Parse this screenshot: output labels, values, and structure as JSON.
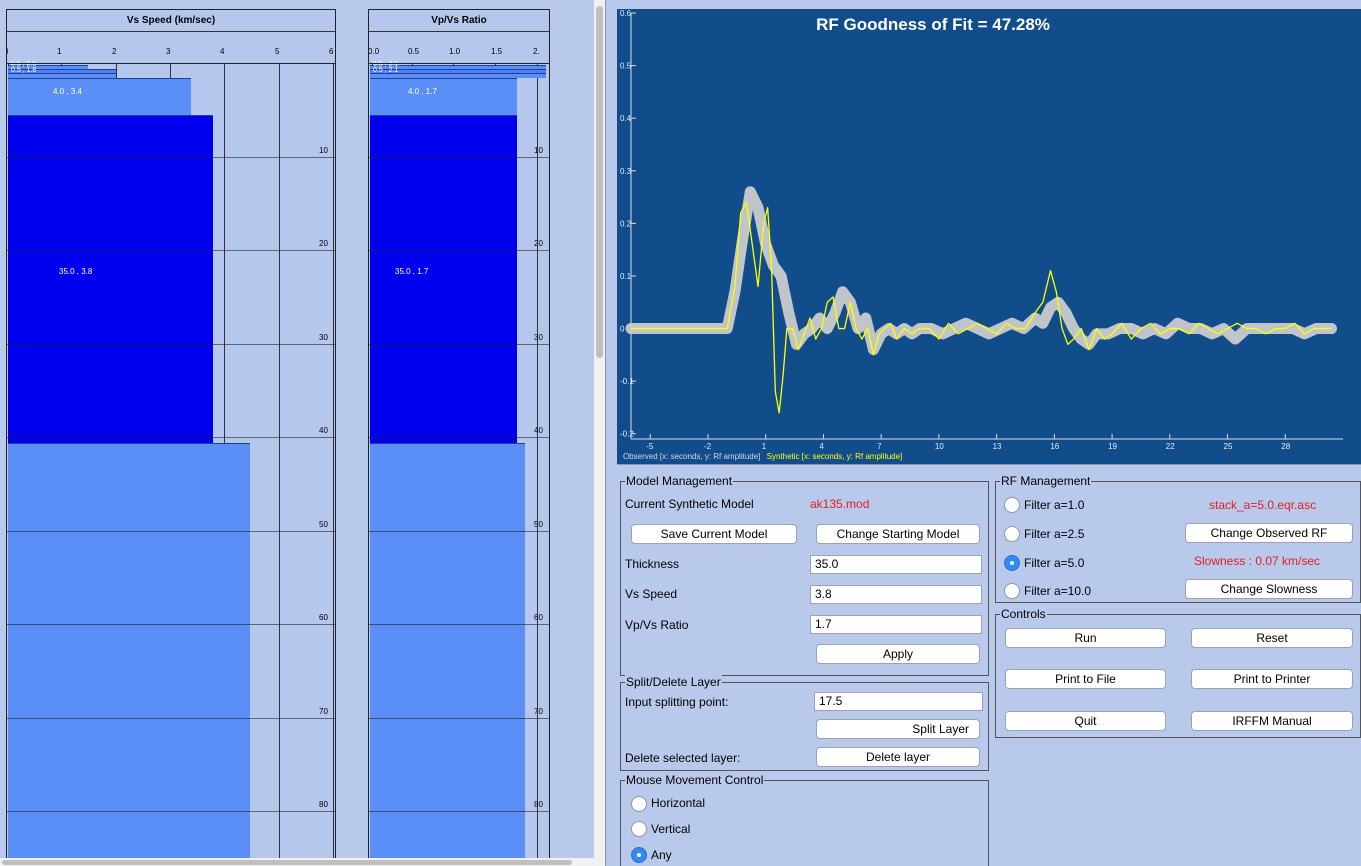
{
  "vs_panel": {
    "title": "Vs Speed (km/sec)",
    "x_ticks": [
      "0",
      "1",
      "2",
      "3",
      "4",
      "5",
      "6"
    ],
    "layer_labels": [
      "4.0 , 3.4",
      "35.0 , 3.8"
    ],
    "small_labels": [
      "0.5 , 2.0",
      "0.5 , 1.8"
    ]
  },
  "vpvs_panel": {
    "title": "Vp/Vs Ratio",
    "x_ticks": [
      "0.0",
      "0.5",
      "1.0",
      "1.5",
      "2."
    ],
    "layer_labels": [
      "4.0 , 1.7",
      "35.0 , 1.7"
    ],
    "small_labels": [
      "0.5 , 2.1",
      "0.5 , 2.1"
    ]
  },
  "depth_ticks": [
    "10",
    "20",
    "30",
    "40",
    "50",
    "60",
    "70",
    "80"
  ],
  "colors": {
    "dark_layer": "#0000ee",
    "light_layer": "#5b8ff8",
    "mid_layer": "#4f82f0",
    "plot_bg": "#124d8b",
    "synthetic": "#ffff00",
    "observed": "#cfcfcf",
    "accent_red": "#e0211f"
  },
  "plot": {
    "title": "RF Goodness of Fit = 47.28%",
    "legend_observed": "Observed [x: seconds, y: Rf amplitude]",
    "legend_synthetic": "Synthetic [x: seconds, y: Rf amplitude]"
  },
  "chart_data": {
    "type": "line",
    "title": "RF Goodness of Fit = 47.28%",
    "xlim": [
      -6,
      31
    ],
    "ylim": [
      -0.21,
      0.6
    ],
    "x_ticks": [
      "-5",
      "-2",
      "1",
      "4",
      "7",
      "10",
      "13",
      "16",
      "19",
      "22",
      "25",
      "28"
    ],
    "y_ticks": [
      "0.6",
      "0.5",
      "0.4",
      "0.3",
      "0.2",
      "0.1",
      "0",
      "-0.1",
      "-0.2"
    ],
    "series": [
      {
        "name": "Observed [x: seconds, y: Rf amplitude]",
        "x": [
          -6,
          -1,
          -0.6,
          -0.2,
          0.2,
          0.6,
          1.0,
          1.4,
          1.8,
          2.2,
          2.6,
          3.0,
          3.4,
          3.8,
          4.2,
          4.6,
          5.0,
          5.4,
          5.8,
          6.2,
          6.6,
          7.0,
          7.4,
          7.8,
          8.2,
          8.6,
          9.0,
          9.6,
          10.2,
          10.8,
          11.4,
          12.0,
          12.6,
          13.2,
          13.8,
          14.4,
          15.0,
          15.4,
          15.8,
          16.2,
          16.6,
          17.0,
          17.4,
          17.8,
          18.2,
          18.8,
          19.4,
          20.0,
          20.6,
          21.2,
          21.8,
          22.4,
          23.0,
          23.6,
          24.2,
          24.8,
          25.4,
          26.0,
          26.6,
          27.2,
          27.8,
          28.4,
          29.0,
          29.6,
          30.4
        ],
        "values": [
          0.0,
          0.0,
          0.07,
          0.17,
          0.26,
          0.23,
          0.16,
          0.12,
          0.1,
          0.03,
          -0.03,
          -0.01,
          0.0,
          0.02,
          0.0,
          0.03,
          0.07,
          0.05,
          0.0,
          0.02,
          -0.04,
          -0.01,
          0.0,
          -0.01,
          0.0,
          -0.01,
          0.0,
          0.0,
          -0.01,
          0.0,
          0.01,
          0.0,
          -0.01,
          0.0,
          0.01,
          0.0,
          0.02,
          0.01,
          0.04,
          0.05,
          0.03,
          0.0,
          -0.02,
          -0.03,
          -0.01,
          -0.01,
          0.0,
          0.0,
          -0.01,
          0.0,
          -0.01,
          0.01,
          0.0,
          0.0,
          -0.01,
          0.0,
          -0.02,
          0.0,
          0.0,
          0.0,
          0.0,
          0.0,
          -0.01,
          0.0,
          0.0
        ]
      },
      {
        "name": "Synthetic [x: seconds, y: Rf amplitude]",
        "x": [
          -6,
          -1,
          -0.6,
          -0.3,
          0.0,
          0.3,
          0.6,
          0.9,
          1.1,
          1.3,
          1.5,
          1.7,
          1.9,
          2.1,
          2.4,
          2.7,
          3.0,
          3.3,
          3.6,
          3.9,
          4.2,
          4.5,
          4.8,
          5.1,
          5.4,
          5.7,
          6.0,
          6.3,
          6.6,
          6.9,
          7.2,
          7.5,
          7.8,
          8.2,
          8.6,
          9.0,
          9.5,
          10.0,
          10.5,
          11.0,
          11.5,
          12.0,
          12.5,
          13.0,
          13.5,
          14.0,
          14.5,
          15.0,
          15.4,
          15.8,
          16.1,
          16.4,
          16.7,
          17.0,
          17.4,
          17.8,
          18.2,
          18.6,
          19.0,
          19.5,
          20.0,
          20.5,
          21.0,
          21.5,
          22.0,
          22.5,
          23.0,
          23.5,
          24.0,
          24.5,
          25.0,
          25.5,
          26.0,
          26.5,
          27.0,
          27.5,
          28.0,
          28.5,
          29.0,
          29.5,
          30.4
        ],
        "values": [
          0.0,
          0.0,
          0.08,
          0.22,
          0.24,
          0.16,
          0.08,
          0.2,
          0.23,
          0.12,
          -0.12,
          -0.16,
          -0.09,
          0.0,
          0.0,
          -0.04,
          -0.01,
          0.02,
          -0.02,
          0.0,
          0.05,
          0.06,
          0.0,
          0.0,
          0.05,
          0.0,
          -0.02,
          0.0,
          -0.05,
          -0.01,
          0.0,
          0.01,
          -0.02,
          0.0,
          -0.01,
          0.0,
          0.0,
          -0.02,
          0.01,
          -0.01,
          0.0,
          0.01,
          0.0,
          -0.01,
          0.01,
          0.0,
          0.0,
          0.03,
          0.05,
          0.11,
          0.07,
          0.0,
          -0.03,
          -0.02,
          0.0,
          -0.04,
          0.0,
          -0.02,
          -0.01,
          0.01,
          -0.02,
          0.0,
          0.01,
          -0.01,
          0.0,
          0.0,
          -0.01,
          0.01,
          0.0,
          -0.01,
          0.0,
          0.01,
          0.0,
          0.0,
          -0.01,
          0.0,
          0.0,
          0.01,
          -0.01,
          0.0,
          0.0
        ]
      }
    ]
  },
  "model_management": {
    "title": "Model Management",
    "current_label": "Current Synthetic Model",
    "current_value": "ak135.mod",
    "save_button": "Save Current Model",
    "change_button": "Change Starting Model",
    "thickness_label": "Thickness",
    "thickness_value": "35.0",
    "vs_label": "Vs Speed",
    "vs_value": "3.8",
    "vpvs_label": "Vp/Vs Ratio",
    "vpvs_value": "1.7",
    "apply_button": "Apply"
  },
  "split_delete": {
    "title": "Split/Delete Layer",
    "input_label": "Input splitting point:",
    "input_value": "17.5",
    "split_button": "Split Layer",
    "delete_label": "Delete selected layer:",
    "delete_button": "Delete layer"
  },
  "mouse_control": {
    "title": "Mouse Movement Control",
    "options": [
      "Horizontal",
      "Vertical",
      "Any"
    ],
    "selected": "Any"
  },
  "rf_management": {
    "title": "RF Management",
    "filters": [
      "Filter a=1.0",
      "Filter a=2.5",
      "Filter a=5.0",
      "Filter a=10.0"
    ],
    "selected": "Filter a=5.0",
    "stack_file": "stack_a=5.0.eqr.asc",
    "change_observed_button": "Change Observed RF",
    "slowness_text": "Slowness : 0.07 km/sec",
    "change_slowness_button": "Change Slowness"
  },
  "controls": {
    "title": "Controls",
    "run": "Run",
    "reset": "Reset",
    "print_file": "Print to File",
    "print_printer": "Print to Printer",
    "quit": "Quit",
    "manual": "IRFFM Manual"
  }
}
